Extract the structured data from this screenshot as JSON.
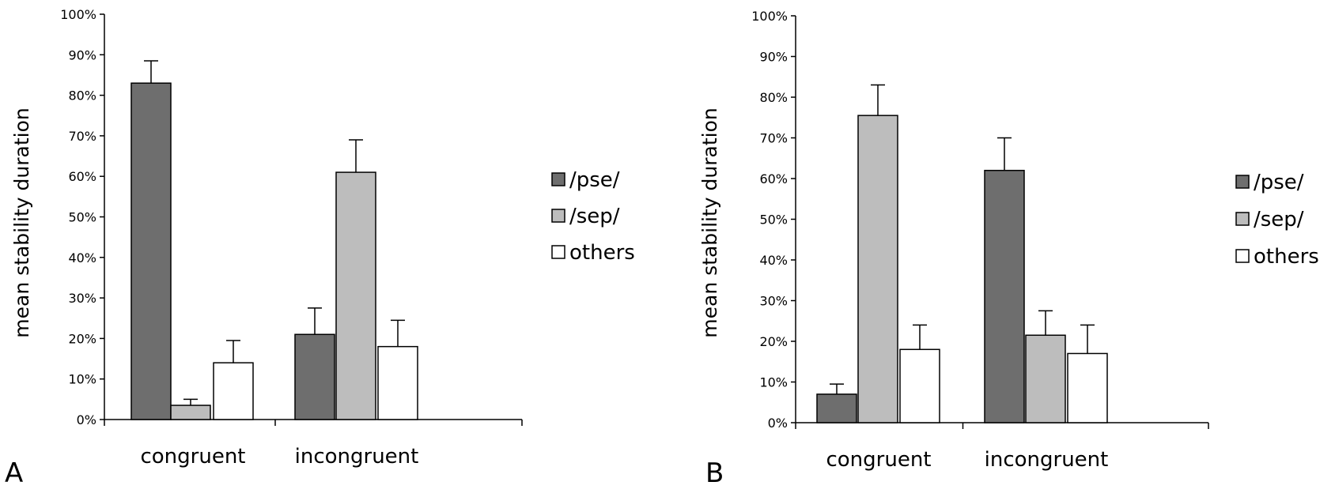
{
  "figure": {
    "panel_labels": [
      "A",
      "B"
    ]
  },
  "chart_data": [
    {
      "panel": "A",
      "type": "bar",
      "ylabel": "mean stability duration",
      "ylim": [
        0,
        100
      ],
      "yticks": [
        "0%",
        "10%",
        "20%",
        "30%",
        "40%",
        "50%",
        "60%",
        "70%",
        "80%",
        "90%",
        "100%"
      ],
      "categories": [
        "congruent",
        "incongruent"
      ],
      "legend_position": "right",
      "grid": false,
      "series": [
        {
          "name": "/pse/",
          "color": "#6e6e6e",
          "values": [
            83,
            21
          ],
          "errors": [
            5.5,
            6.5
          ]
        },
        {
          "name": "/sep/",
          "color": "#bdbdbd",
          "values": [
            3.5,
            61
          ],
          "errors": [
            1.5,
            8
          ]
        },
        {
          "name": "others",
          "color": "#ffffff",
          "values": [
            14,
            18
          ],
          "errors": [
            5.5,
            6.5
          ]
        }
      ]
    },
    {
      "panel": "B",
      "type": "bar",
      "ylabel": "mean stability duration",
      "ylim": [
        0,
        100
      ],
      "yticks": [
        "0%",
        "10%",
        "20%",
        "30%",
        "40%",
        "50%",
        "60%",
        "70%",
        "80%",
        "90%",
        "100%"
      ],
      "categories": [
        "congruent",
        "incongruent"
      ],
      "legend_position": "right",
      "grid": false,
      "series": [
        {
          "name": "/pse/",
          "color": "#6e6e6e",
          "values": [
            7,
            62
          ],
          "errors": [
            2.5,
            8
          ]
        },
        {
          "name": "/sep/",
          "color": "#bdbdbd",
          "values": [
            75.5,
            21.5
          ],
          "errors": [
            7.5,
            6
          ]
        },
        {
          "name": "others",
          "color": "#ffffff",
          "values": [
            18,
            17
          ],
          "errors": [
            6,
            7
          ]
        }
      ]
    }
  ]
}
